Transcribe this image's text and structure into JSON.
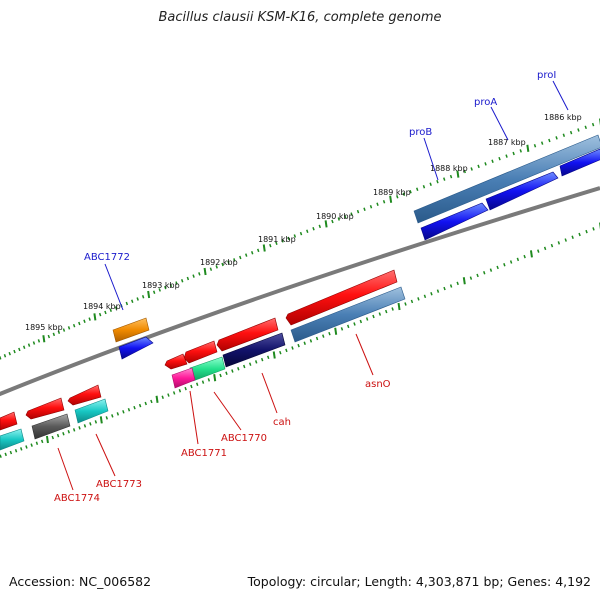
{
  "title": "Bacillus clausii KSM-K16, complete genome",
  "footer": {
    "accession": "Accession: NC_006582",
    "summary": "Topology: circular; Length: 4,303,871 bp; Genes: 4,192"
  },
  "colors": {
    "backbone": "#8c8c8c",
    "tick": "#1f8a1f",
    "forward_gene": "#ff1a1a",
    "reverse_gene_blue": "#1010f0",
    "operon_bar": "#4a7fb5",
    "label_forward": "#1a1acc",
    "label_reverse": "#cc1111"
  },
  "kbp_ticks": [
    "1886 kbp",
    "1887 kbp",
    "1888 kbp",
    "1889 kbp",
    "1890 kbp",
    "1891 kbp",
    "1892 kbp",
    "1893 kbp",
    "1894 kbp",
    "1895 kbp"
  ],
  "gene_labels": [
    {
      "text": "proI",
      "strand": "forward"
    },
    {
      "text": "proA",
      "strand": "forward"
    },
    {
      "text": "proB",
      "strand": "forward"
    },
    {
      "text": "ABC1772",
      "strand": "forward"
    },
    {
      "text": "asnO",
      "strand": "reverse"
    },
    {
      "text": "cah",
      "strand": "reverse"
    },
    {
      "text": "ABC1770",
      "strand": "reverse"
    },
    {
      "text": "ABC1771",
      "strand": "reverse"
    },
    {
      "text": "ABC1773",
      "strand": "reverse"
    },
    {
      "text": "ABC1774",
      "strand": "reverse"
    }
  ]
}
